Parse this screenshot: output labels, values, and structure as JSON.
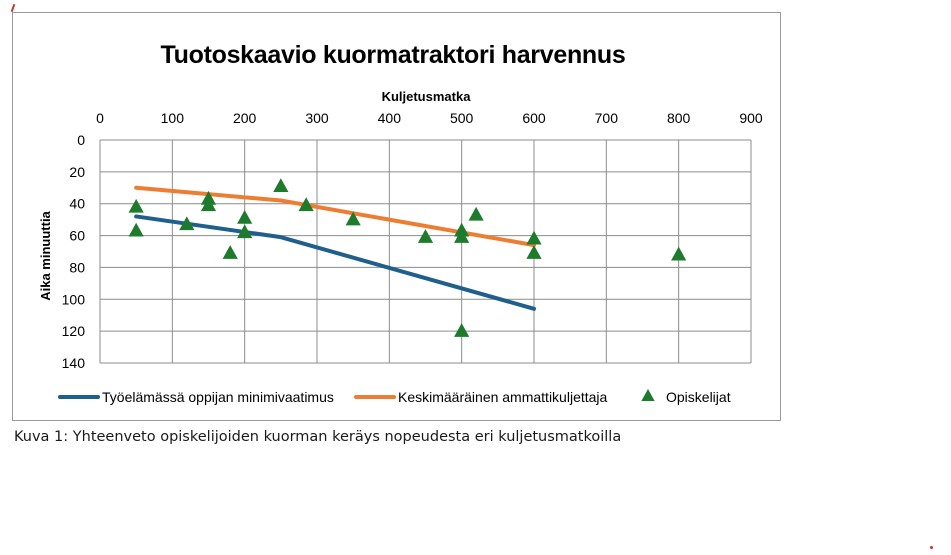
{
  "chart_data": {
    "type": "scatter",
    "title": "Tuotoskaavio kuormatraktori harvennus",
    "xlabel": "Kuljetusmatka",
    "ylabel": "Aika minuuttia",
    "xlim": [
      0,
      900
    ],
    "ylim": [
      0,
      140
    ],
    "x_axis_position": "top",
    "y_axis_inverted": true,
    "x_ticks": [
      0,
      100,
      200,
      300,
      400,
      500,
      600,
      700,
      800,
      900
    ],
    "y_ticks": [
      0,
      20,
      40,
      60,
      80,
      100,
      120,
      140
    ],
    "grid": true,
    "legend_position": "bottom",
    "series": [
      {
        "name": "Työelämässä oppijan minimivaatimus",
        "kind": "line",
        "color": "#1f5f8b",
        "points": [
          [
            50,
            48
          ],
          [
            250,
            61
          ],
          [
            600,
            106
          ]
        ]
      },
      {
        "name": "Keskimääräinen ammattikuljettaja",
        "kind": "line",
        "color": "#ed7d31",
        "points": [
          [
            50,
            30
          ],
          [
            250,
            38
          ],
          [
            600,
            66
          ]
        ]
      },
      {
        "name": "Opiskelijat",
        "kind": "scatter",
        "marker": "triangle",
        "color": "#1e7b2e",
        "points": [
          [
            50,
            42
          ],
          [
            50,
            57
          ],
          [
            120,
            53
          ],
          [
            150,
            37
          ],
          [
            150,
            41
          ],
          [
            180,
            71
          ],
          [
            200,
            49
          ],
          [
            200,
            58
          ],
          [
            250,
            29
          ],
          [
            285,
            41
          ],
          [
            350,
            50
          ],
          [
            450,
            61
          ],
          [
            500,
            57
          ],
          [
            500,
            61
          ],
          [
            500,
            120
          ],
          [
            520,
            47
          ],
          [
            600,
            62
          ],
          [
            600,
            71
          ],
          [
            800,
            72
          ]
        ]
      }
    ]
  },
  "caption": "Kuva 1: Yhteenveto opiskelijoiden kuorman keräys nopeudesta eri kuljetusmatkoilla"
}
